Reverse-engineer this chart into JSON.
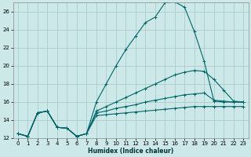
{
  "xlabel": "Humidex (Indice chaleur)",
  "bg_color": "#cce8e8",
  "grid_color": "#aacccc",
  "line_color": "#006666",
  "xlim": [
    -0.5,
    23.5
  ],
  "ylim": [
    12,
    27
  ],
  "xticks": [
    0,
    1,
    2,
    3,
    4,
    5,
    6,
    7,
    8,
    9,
    10,
    11,
    12,
    13,
    14,
    15,
    16,
    17,
    18,
    19,
    20,
    21,
    22,
    23
  ],
  "yticks": [
    12,
    14,
    16,
    18,
    20,
    22,
    24,
    26
  ],
  "series": [
    {
      "x": [
        0,
        1,
        2,
        3,
        4,
        5,
        6,
        7,
        8,
        9,
        10,
        11,
        12,
        13,
        14,
        15,
        16,
        17,
        18,
        19,
        20,
        21,
        22,
        23
      ],
      "y": [
        12.5,
        12.2,
        14.8,
        15.0,
        13.2,
        13.1,
        12.2,
        12.5,
        16.0,
        18.0,
        20.0,
        21.8,
        23.3,
        24.8,
        25.4,
        27.0,
        27.1,
        26.5,
        23.8,
        20.5,
        16.1,
        16.0,
        16.0,
        16.0
      ],
      "marker": "+"
    },
    {
      "x": [
        0,
        1,
        2,
        3,
        4,
        5,
        6,
        7,
        8,
        9,
        10,
        11,
        12,
        13,
        14,
        15,
        16,
        17,
        18,
        19,
        20,
        21,
        22,
        23
      ],
      "y": [
        12.5,
        12.2,
        14.8,
        15.0,
        13.2,
        13.1,
        12.2,
        12.5,
        15.0,
        15.5,
        16.0,
        16.5,
        17.0,
        17.5,
        18.0,
        18.5,
        19.0,
        19.3,
        19.5,
        19.4,
        18.5,
        17.3,
        16.1,
        16.0
      ],
      "marker": "+"
    },
    {
      "x": [
        0,
        1,
        2,
        3,
        4,
        5,
        6,
        7,
        8,
        9,
        10,
        11,
        12,
        13,
        14,
        15,
        16,
        17,
        18,
        19,
        20,
        21,
        22,
        23
      ],
      "y": [
        12.5,
        12.2,
        14.8,
        15.0,
        13.2,
        13.1,
        12.2,
        12.5,
        14.8,
        15.0,
        15.3,
        15.5,
        15.7,
        16.0,
        16.2,
        16.4,
        16.6,
        16.8,
        16.9,
        17.0,
        16.2,
        16.1,
        16.0,
        16.0
      ],
      "marker": "+"
    },
    {
      "x": [
        0,
        1,
        2,
        3,
        4,
        5,
        6,
        7,
        8,
        9,
        10,
        11,
        12,
        13,
        14,
        15,
        16,
        17,
        18,
        19,
        20,
        21,
        22,
        23
      ],
      "y": [
        12.5,
        12.2,
        14.8,
        15.0,
        13.2,
        13.1,
        12.2,
        12.5,
        14.5,
        14.6,
        14.7,
        14.8,
        14.9,
        15.0,
        15.1,
        15.2,
        15.3,
        15.4,
        15.5,
        15.5,
        15.5,
        15.5,
        15.5,
        15.5
      ],
      "marker": "+"
    }
  ]
}
